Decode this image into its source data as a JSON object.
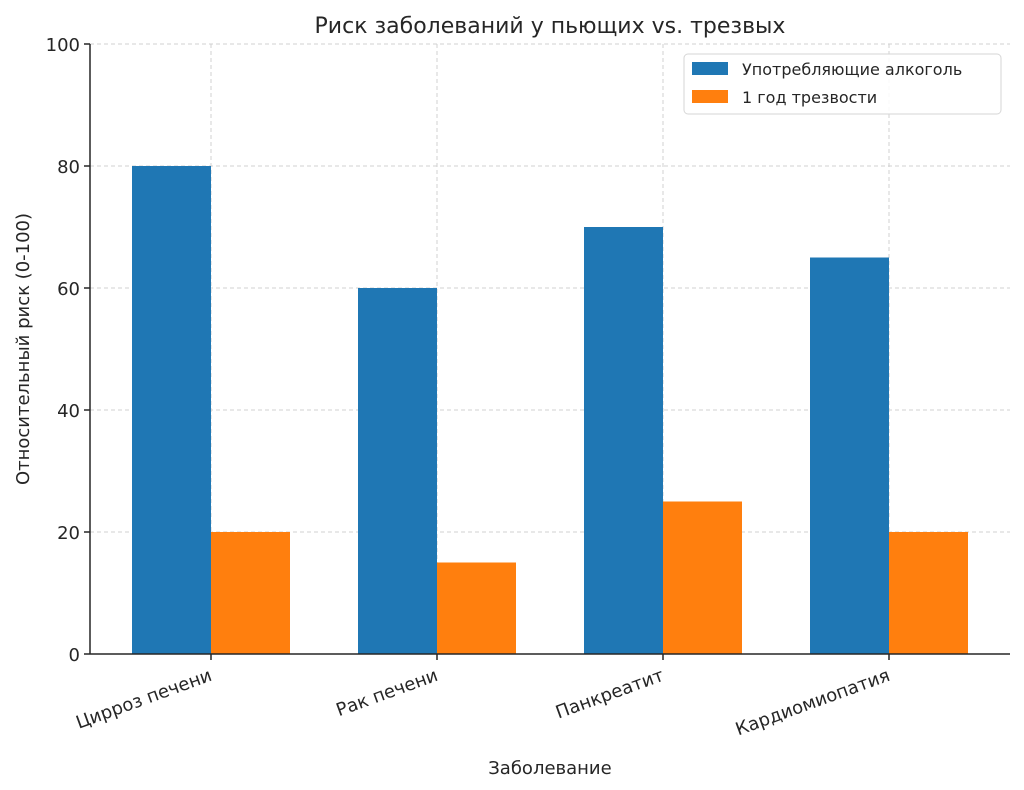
{
  "chart_data": {
    "type": "bar",
    "title": "Риск заболеваний у пьющих vs. трезвых",
    "xlabel": "Заболевание",
    "ylabel": "Относительный риск (0-100)",
    "categories": [
      "Цирроз печени",
      "Рак печени",
      "Панкреатит",
      "Кардиомиопатия"
    ],
    "series": [
      {
        "name": "Употребляющие алкоголь",
        "color": "#1f77b4",
        "values": [
          80,
          60,
          70,
          65
        ]
      },
      {
        "name": "1 год трезвости",
        "color": "#ff7f0e",
        "values": [
          20,
          15,
          25,
          20
        ]
      }
    ],
    "ylim": [
      0,
      100
    ],
    "yticks": [
      0,
      20,
      40,
      60,
      80,
      100
    ],
    "grid": true,
    "legend_position": "upper right",
    "xtick_rotation": 20
  }
}
